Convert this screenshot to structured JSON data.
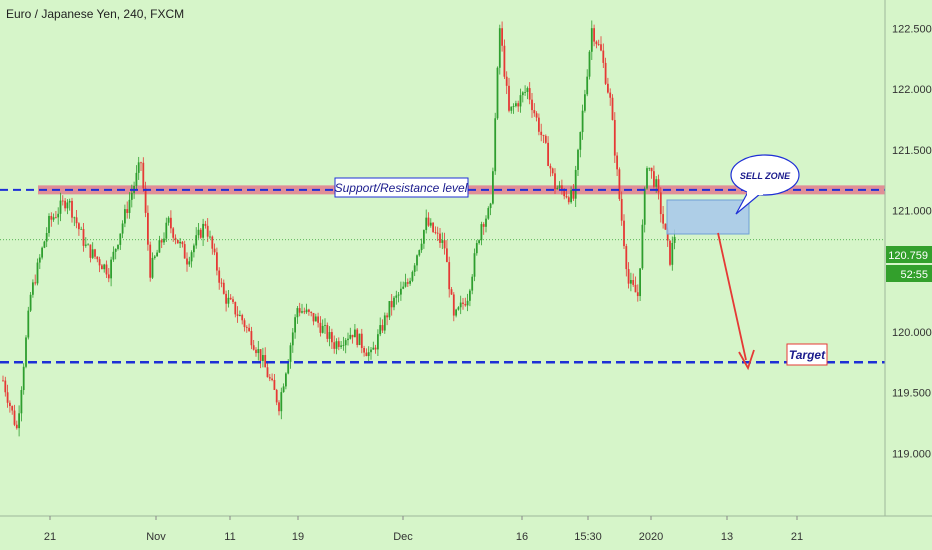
{
  "header": {
    "symbol_title": "Euro / Japanese Yen, 240, FXCM"
  },
  "price_scale": {
    "current_price": "120.759",
    "countdown": "52:55"
  },
  "annotations": {
    "sr_label": "Support/Resistance level",
    "sell_zone_label": "SELL ZONE",
    "target_label": "Target"
  },
  "colors": {
    "background": "#d6f5c9",
    "up_candle": "#2e9e2e",
    "down_candle": "#e53935",
    "level_line": "#1e2fd6",
    "resistance_band": "#e27b8e",
    "sell_zone_fill": "#a7c7ec",
    "arrow": "#e53935",
    "current_price_badge": "#33a02c"
  },
  "chart_data": {
    "type": "candlestick",
    "title": "Euro / Japanese Yen, 240, FXCM",
    "ylim": [
      118.5,
      122.75
    ],
    "y_ticks": [
      "119.000",
      "119.500",
      "120.000",
      "120.500",
      "121.000",
      "121.500",
      "122.000",
      "122.500"
    ],
    "x_ticks": [
      "21",
      "Nov",
      "11",
      "19",
      "Dec",
      "16",
      "15:30",
      "2020",
      "13",
      "21"
    ],
    "close_path": [
      [
        0,
        119.6
      ],
      [
        3,
        119.2
      ],
      [
        6,
        120.3
      ],
      [
        10,
        120.9
      ],
      [
        14,
        121.1
      ],
      [
        18,
        120.7
      ],
      [
        23,
        120.5
      ],
      [
        26,
        120.9
      ],
      [
        30,
        121.4
      ],
      [
        32,
        120.5
      ],
      [
        36,
        120.9
      ],
      [
        40,
        120.6
      ],
      [
        44,
        120.9
      ],
      [
        48,
        120.3
      ],
      [
        52,
        120.1
      ],
      [
        56,
        119.8
      ],
      [
        60,
        119.4
      ],
      [
        64,
        120.2
      ],
      [
        68,
        120.1
      ],
      [
        72,
        119.9
      ],
      [
        76,
        120.0
      ],
      [
        80,
        119.8
      ],
      [
        84,
        120.2
      ],
      [
        88,
        120.4
      ],
      [
        92,
        120.9
      ],
      [
        96,
        120.7
      ],
      [
        98,
        120.1
      ],
      [
        101,
        120.3
      ],
      [
        104,
        120.9
      ],
      [
        106,
        121.0
      ],
      [
        108,
        122.5
      ],
      [
        110,
        121.8
      ],
      [
        114,
        122.0
      ],
      [
        118,
        121.5
      ],
      [
        120,
        121.2
      ],
      [
        124,
        121.1
      ],
      [
        128,
        122.5
      ],
      [
        130,
        122.3
      ],
      [
        132,
        121.9
      ],
      [
        134,
        121.1
      ],
      [
        136,
        120.4
      ],
      [
        138,
        120.3
      ],
      [
        140,
        121.4
      ],
      [
        142,
        121.2
      ],
      [
        145,
        120.6
      ],
      [
        146,
        120.8
      ]
    ],
    "support_resistance_level": 121.17,
    "target_level": 119.75,
    "current_price": 120.759,
    "sell_zone": {
      "x_range": [
        139,
        150
      ],
      "y_range": [
        120.95,
        121.12
      ]
    },
    "projection_arrow": {
      "from": [
        146,
        121.0
      ],
      "to": [
        153,
        119.78
      ]
    }
  }
}
